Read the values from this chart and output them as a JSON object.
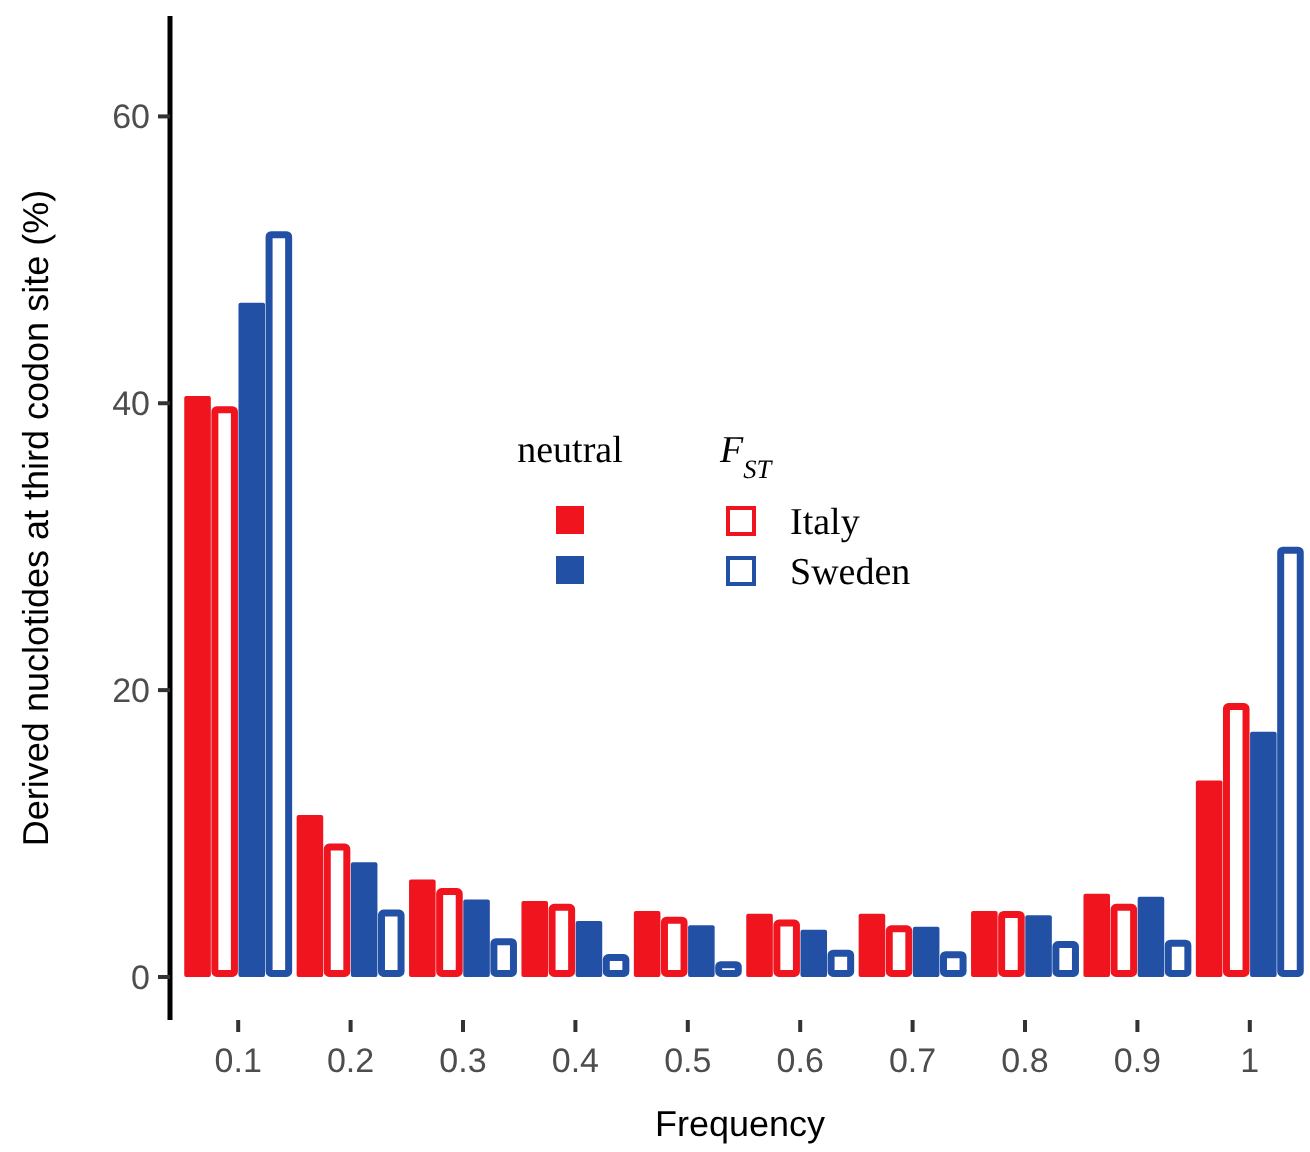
{
  "chart_data": {
    "type": "bar",
    "xlabel": "Frequency",
    "ylabel": "Derived nuclotides at third codon site (%)",
    "categories": [
      "0.1",
      "0.2",
      "0.3",
      "0.4",
      "0.5",
      "0.6",
      "0.7",
      "0.8",
      "0.9",
      "1"
    ],
    "series": [
      {
        "color": "#f0141e",
        "values": [
          40.5,
          11.3,
          6.8,
          5.3,
          4.6,
          4.4,
          4.4,
          4.6,
          5.8,
          13.7
        ]
      },
      {
        "name": "Italy",
        "color": "#f0141e",
        "values": [
          39.8,
          9.3,
          6.2,
          5.1,
          4.2,
          4.0,
          3.6,
          4.6,
          5.1,
          19.1
        ]
      },
      {
        "color": "#2250a5",
        "values": [
          47,
          8,
          5.4,
          3.9,
          3.6,
          3.3,
          3.5,
          4.3,
          5.6,
          17.1
        ]
      },
      {
        "name": "Sweden",
        "color": "#2250a5",
        "values": [
          52,
          4.7,
          2.7,
          1.6,
          1.1,
          1.9,
          1.8,
          2.5,
          2.6,
          30
        ]
      }
    ],
    "annotations": [
      "neutral",
      "F$_{ST}$"
    ],
    "ylim": [
      -3,
      67
    ],
    "yticks": [
      0,
      20,
      40,
      60
    ],
    "legend": "center",
    "grid": false
  }
}
